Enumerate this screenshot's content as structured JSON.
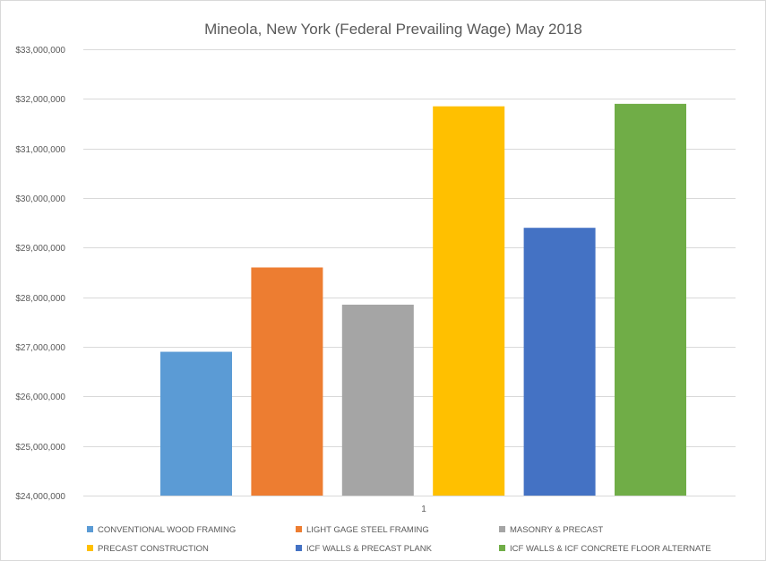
{
  "chart_data": {
    "type": "bar",
    "title": "Mineola, New York (Federal Prevailing Wage) May 2018",
    "categories": [
      "1"
    ],
    "series": [
      {
        "name": "CONVENTIONAL WOOD FRAMING",
        "values": [
          26900000
        ],
        "color": "#5b9bd5"
      },
      {
        "name": "LIGHT GAGE STEEL FRAMING",
        "values": [
          28600000
        ],
        "color": "#ed7d31"
      },
      {
        "name": "MASONRY & PRECAST",
        "values": [
          27850000
        ],
        "color": "#a5a5a5"
      },
      {
        "name": "PRECAST CONSTRUCTION",
        "values": [
          31850000
        ],
        "color": "#ffc000"
      },
      {
        "name": "ICF WALLS & PRECAST PLANK",
        "values": [
          29400000
        ],
        "color": "#4472c4"
      },
      {
        "name": "ICF WALLS & ICF CONCRETE FLOOR ALTERNATE",
        "values": [
          31900000
        ],
        "color": "#70ad47"
      }
    ],
    "ylim": [
      24000000,
      33000000
    ],
    "y_ticks": [
      "$24,000,000",
      "$25,000,000",
      "$26,000,000",
      "$27,000,000",
      "$28,000,000",
      "$29,000,000",
      "$30,000,000",
      "$31,000,000",
      "$32,000,000",
      "$33,000,000"
    ],
    "y_tick_values": [
      24000000,
      25000000,
      26000000,
      27000000,
      28000000,
      29000000,
      30000000,
      31000000,
      32000000,
      33000000
    ],
    "xlabel": "",
    "ylabel": "",
    "grid": true,
    "legend_position": "bottom"
  }
}
